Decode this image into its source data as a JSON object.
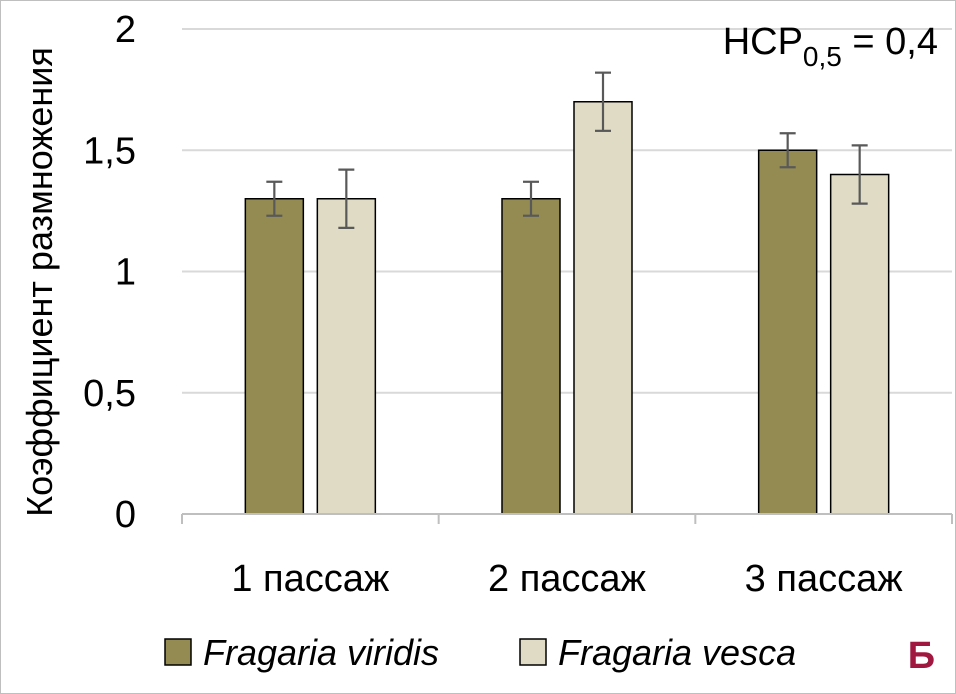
{
  "chart_data": {
    "type": "bar",
    "title": "",
    "xlabel": "",
    "ylabel": "Коэффициент размножения",
    "ylim": [
      0,
      2
    ],
    "yticks": [
      0,
      0.5,
      1,
      1.5,
      2
    ],
    "ytick_labels": [
      "0",
      "0,5",
      "1",
      "1,5",
      "2"
    ],
    "categories": [
      "1 пассаж",
      "2 пассаж",
      "3 пассаж"
    ],
    "series": [
      {
        "name": "Fragaria viridis",
        "color": "#948b52",
        "values": [
          1.3,
          1.3,
          1.5
        ],
        "errors": [
          0.07,
          0.07,
          0.07
        ]
      },
      {
        "name": "Fragaria vesca",
        "color": "#e0dbc5",
        "values": [
          1.3,
          1.7,
          1.4
        ],
        "errors": [
          0.12,
          0.12,
          0.12
        ]
      }
    ],
    "annotation": {
      "main": "НСР",
      "subscript": "0,5",
      "rest": " = 0,4"
    },
    "legend_position": "bottom",
    "panel_label": "Б",
    "grid": true
  }
}
